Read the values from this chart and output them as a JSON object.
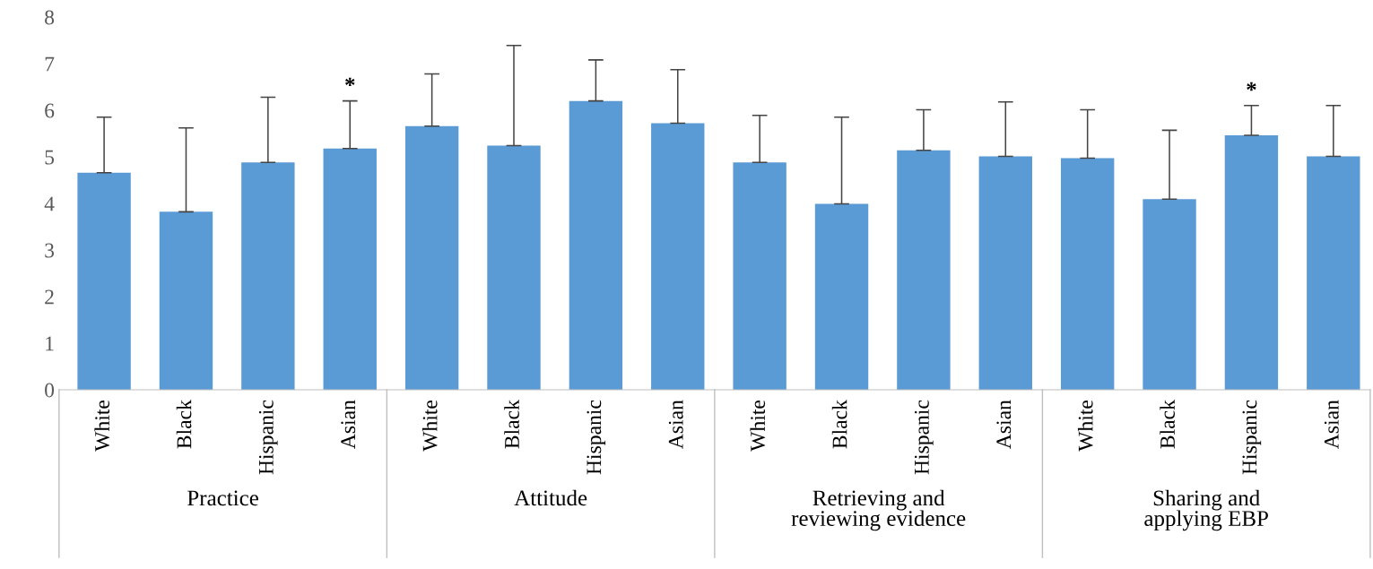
{
  "chart_data": [
    {
      "type": "bar",
      "xlabel": "Practice",
      "categories": [
        "White",
        "Black",
        "Hispanic",
        "Asian"
      ],
      "values": [
        4.66,
        3.82,
        4.88,
        5.18
      ],
      "errors": [
        [
          4.66,
          5.85
        ],
        [
          3.82,
          5.62
        ],
        [
          4.88,
          6.28
        ],
        [
          5.18,
          6.2
        ]
      ],
      "color": "#5b9bd5",
      "ylim": [
        0,
        8
      ],
      "yticks": [
        0,
        1,
        2,
        3,
        4,
        5,
        6,
        7,
        8
      ],
      "grid": false,
      "annotations": [
        {
          "text": "*",
          "x": "Asian",
          "y": 6.2
        }
      ]
    },
    {
      "type": "bar",
      "xlabel": "Attitude",
      "categories": [
        "White",
        "Black",
        "Hispanic",
        "Asian"
      ],
      "values": [
        5.66,
        5.24,
        6.2,
        5.72
      ],
      "errors": [
        [
          5.66,
          6.78
        ],
        [
          5.24,
          7.39
        ],
        [
          6.2,
          7.08
        ],
        [
          5.72,
          6.87
        ]
      ],
      "color": "#5b9bd5",
      "ylim": [
        0,
        8
      ],
      "tick_labels": "x",
      "grid": false
    },
    {
      "type": "bar",
      "xlabel": "Retrieving and\nreviewing evidence",
      "categories": [
        "White",
        "Black",
        "Hispanic",
        "Asian"
      ],
      "values": [
        4.88,
        3.99,
        5.14,
        5.01
      ],
      "errors": [
        [
          4.88,
          5.89
        ],
        [
          3.99,
          5.85
        ],
        [
          5.14,
          6.01
        ],
        [
          5.01,
          6.18
        ]
      ],
      "color": "#5b9bd5",
      "ylim": [
        0,
        8
      ],
      "tick_labels": "x",
      "grid": false
    },
    {
      "type": "bar",
      "xlabel": "Sharing and\napplying EBP",
      "categories": [
        "White",
        "Black",
        "Hispanic",
        "Asian"
      ],
      "values": [
        4.97,
        4.09,
        5.46,
        5.01
      ],
      "errors": [
        [
          4.97,
          6.01
        ],
        [
          4.09,
          5.57
        ],
        [
          5.46,
          6.1
        ],
        [
          5.01,
          6.1
        ]
      ],
      "color": "#5b9bd5",
      "ylim": [
        0,
        8
      ],
      "tick_labels": "x",
      "grid": false,
      "annotations": [
        {
          "text": "*",
          "x": "Hispanic",
          "y": 6.1
        }
      ]
    }
  ]
}
